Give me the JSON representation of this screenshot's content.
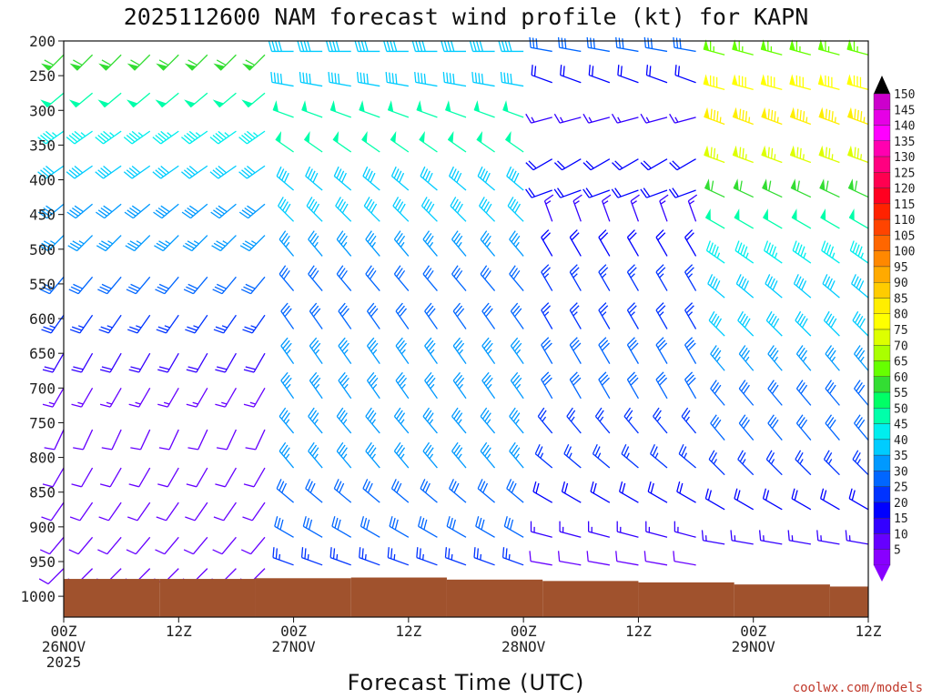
{
  "chart_data": {
    "type": "wind_barb_profile",
    "title": "2025112600 NAM forecast wind profile (kt) for KAPN",
    "xlabel": "Forecast Time (UTC)",
    "credit": "coolwx.com/models",
    "x_range_hours": [
      0,
      84
    ],
    "x_step_hours": 3,
    "x_ticks": [
      {
        "hour": 0,
        "lines": [
          "00Z",
          "26NOV",
          "2025"
        ]
      },
      {
        "hour": 12,
        "lines": [
          "12Z"
        ]
      },
      {
        "hour": 24,
        "lines": [
          "00Z",
          "27NOV"
        ]
      },
      {
        "hour": 36,
        "lines": [
          "12Z"
        ]
      },
      {
        "hour": 48,
        "lines": [
          "00Z",
          "28NOV"
        ]
      },
      {
        "hour": 60,
        "lines": [
          "12Z"
        ]
      },
      {
        "hour": 72,
        "lines": [
          "00Z",
          "29NOV"
        ]
      },
      {
        "hour": 84,
        "lines": [
          "12Z"
        ]
      }
    ],
    "pressure_ticks_hpa": [
      200,
      250,
      300,
      350,
      400,
      450,
      500,
      550,
      600,
      650,
      700,
      750,
      800,
      850,
      900,
      950,
      1000
    ],
    "y_range_hpa": [
      200,
      1030
    ],
    "colorbar_ticks_kt": [
      150,
      145,
      140,
      135,
      130,
      125,
      120,
      115,
      110,
      105,
      100,
      95,
      90,
      85,
      80,
      75,
      70,
      65,
      60,
      55,
      50,
      45,
      40,
      35,
      30,
      25,
      20,
      15,
      10,
      5
    ],
    "colorbar_colors": [
      "#cc00cc",
      "#e600e6",
      "#ff00ff",
      "#ff00b0",
      "#ff0080",
      "#ff0050",
      "#ff0020",
      "#ff2200",
      "#ff4400",
      "#ff6600",
      "#ff8800",
      "#ffaa00",
      "#ffcc00",
      "#ffee00",
      "#ffff00",
      "#ddff00",
      "#aaff00",
      "#66ff00",
      "#33dd33",
      "#00ff66",
      "#00ffaa",
      "#00eeee",
      "#00ccff",
      "#0099ff",
      "#0066ff",
      "#0033ff",
      "#0000ff",
      "#3300ff",
      "#6600ff",
      "#8800ff"
    ],
    "surface_pressure_hpa": [
      [
        0,
        975
      ],
      [
        10,
        975
      ],
      [
        20,
        974
      ],
      [
        30,
        973
      ],
      [
        40,
        976
      ],
      [
        50,
        978
      ],
      [
        60,
        980
      ],
      [
        70,
        983
      ],
      [
        80,
        986
      ],
      [
        84,
        987
      ]
    ],
    "profile_columns": [
      {
        "hours": [
          0,
          1,
          2,
          3,
          4,
          5,
          6,
          7,
          8,
          9,
          10,
          11,
          12,
          13,
          14,
          15,
          16,
          17,
          18,
          19,
          20,
          21,
          22
        ],
        "levels": [
          {
            "p": 220,
            "dir": 225,
            "spd": 60
          },
          {
            "p": 275,
            "dir": 230,
            "spd": 50
          },
          {
            "p": 330,
            "dir": 235,
            "spd": 45
          },
          {
            "p": 380,
            "dir": 235,
            "spd": 40
          },
          {
            "p": 435,
            "dir": 230,
            "spd": 38
          },
          {
            "p": 480,
            "dir": 225,
            "spd": 35
          },
          {
            "p": 540,
            "dir": 220,
            "spd": 30
          },
          {
            "p": 595,
            "dir": 215,
            "spd": 25
          },
          {
            "p": 650,
            "dir": 210,
            "spd": 18
          },
          {
            "p": 700,
            "dir": 210,
            "spd": 14
          },
          {
            "p": 760,
            "dir": 205,
            "spd": 10
          },
          {
            "p": 815,
            "dir": 210,
            "spd": 10
          },
          {
            "p": 865,
            "dir": 215,
            "spd": 10
          },
          {
            "p": 915,
            "dir": 220,
            "spd": 10
          },
          {
            "p": 960,
            "dir": 225,
            "spd": 10
          }
        ]
      },
      {
        "hours": [
          23,
          24,
          25,
          26,
          27,
          28,
          29,
          30,
          31,
          32,
          33,
          34,
          35,
          36,
          37,
          38,
          39,
          40,
          41,
          42,
          43,
          44,
          45,
          46,
          47,
          48
        ],
        "levels": [
          {
            "p": 215,
            "dir": 270,
            "spd": 40
          },
          {
            "p": 265,
            "dir": 280,
            "spd": 40
          },
          {
            "p": 310,
            "dir": 290,
            "spd": 50
          },
          {
            "p": 360,
            "dir": 305,
            "spd": 50
          },
          {
            "p": 415,
            "dir": 310,
            "spd": 40
          },
          {
            "p": 460,
            "dir": 315,
            "spd": 40
          },
          {
            "p": 510,
            "dir": 320,
            "spd": 35
          },
          {
            "p": 560,
            "dir": 320,
            "spd": 30
          },
          {
            "p": 615,
            "dir": 325,
            "spd": 30
          },
          {
            "p": 665,
            "dir": 325,
            "spd": 35
          },
          {
            "p": 715,
            "dir": 325,
            "spd": 35
          },
          {
            "p": 765,
            "dir": 320,
            "spd": 35
          },
          {
            "p": 815,
            "dir": 320,
            "spd": 35
          },
          {
            "p": 865,
            "dir": 310,
            "spd": 30
          },
          {
            "p": 915,
            "dir": 300,
            "spd": 30
          },
          {
            "p": 955,
            "dir": 290,
            "spd": 25
          }
        ]
      },
      {
        "hours": [
          49,
          50,
          51,
          52,
          53,
          54,
          55,
          56,
          57,
          58,
          59,
          60,
          61,
          62,
          63,
          64,
          65,
          66,
          67,
          68
        ],
        "levels": [
          {
            "p": 215,
            "dir": 280,
            "spd": 30
          },
          {
            "p": 260,
            "dir": 290,
            "spd": 20
          },
          {
            "p": 310,
            "dir": 255,
            "spd": 15
          },
          {
            "p": 370,
            "dir": 240,
            "spd": 20
          },
          {
            "p": 415,
            "dir": 250,
            "spd": 20
          },
          {
            "p": 460,
            "dir": 340,
            "spd": 15
          },
          {
            "p": 510,
            "dir": 330,
            "spd": 20
          },
          {
            "p": 560,
            "dir": 330,
            "spd": 25
          },
          {
            "p": 615,
            "dir": 330,
            "spd": 25
          },
          {
            "p": 665,
            "dir": 330,
            "spd": 30
          },
          {
            "p": 715,
            "dir": 330,
            "spd": 30
          },
          {
            "p": 765,
            "dir": 320,
            "spd": 25
          },
          {
            "p": 815,
            "dir": 310,
            "spd": 25
          },
          {
            "p": 865,
            "dir": 300,
            "spd": 20
          },
          {
            "p": 915,
            "dir": 285,
            "spd": 15
          },
          {
            "p": 955,
            "dir": 280,
            "spd": 10
          }
        ]
      },
      {
        "hours": [
          69,
          70,
          71,
          72,
          73,
          74,
          75,
          76,
          77,
          78,
          79,
          80,
          81,
          82,
          83,
          84
        ],
        "levels": [
          {
            "p": 220,
            "dir": 285,
            "spd": 65
          },
          {
            "p": 270,
            "dir": 285,
            "spd": 80
          },
          {
            "p": 320,
            "dir": 290,
            "spd": 85
          },
          {
            "p": 375,
            "dir": 290,
            "spd": 75
          },
          {
            "p": 425,
            "dir": 295,
            "spd": 60
          },
          {
            "p": 470,
            "dir": 300,
            "spd": 50
          },
          {
            "p": 520,
            "dir": 305,
            "spd": 45
          },
          {
            "p": 570,
            "dir": 310,
            "spd": 40
          },
          {
            "p": 625,
            "dir": 315,
            "spd": 40
          },
          {
            "p": 675,
            "dir": 320,
            "spd": 35
          },
          {
            "p": 725,
            "dir": 320,
            "spd": 30
          },
          {
            "p": 775,
            "dir": 320,
            "spd": 30
          },
          {
            "p": 825,
            "dir": 315,
            "spd": 25
          },
          {
            "p": 875,
            "dir": 300,
            "spd": 20
          },
          {
            "p": 925,
            "dir": 280,
            "spd": 15
          }
        ]
      }
    ]
  }
}
